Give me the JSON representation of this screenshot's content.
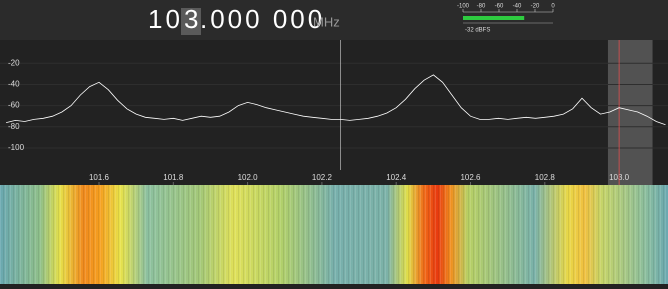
{
  "frequency": {
    "parts": [
      "10",
      "3",
      ".000 000"
    ],
    "unit": "MHz"
  },
  "meter": {
    "ticks": [
      -100,
      -80,
      -60,
      -40,
      -20,
      0
    ],
    "lim": [
      -100,
      0
    ],
    "value": -32,
    "value_label": "-32 dBFS",
    "color": "#2ecc40"
  },
  "chart_data": {
    "type": "line",
    "color": "#ffffff",
    "xlim": [
      101.3335,
      103.1316
    ],
    "ylim": [
      -135,
      2
    ],
    "xticks": [
      {
        "value": 101.6,
        "label": "101.6"
      },
      {
        "value": 101.8,
        "label": "101.8"
      },
      {
        "value": 102.0,
        "label": "102.0"
      },
      {
        "value": 102.2,
        "label": "102.2"
      },
      {
        "value": 102.4,
        "label": "102.4"
      },
      {
        "value": 102.6,
        "label": "102.6"
      },
      {
        "value": 102.8,
        "label": "102.8"
      },
      {
        "value": 103.0,
        "label": "103.0"
      }
    ],
    "yticks": [
      -20,
      -40,
      -60,
      -80,
      -100
    ],
    "center": 102.25,
    "marker": 103.0,
    "filter": [
      102.97,
      103.09
    ],
    "x": [
      101.35,
      101.375,
      101.4,
      101.425,
      101.45,
      101.475,
      101.5,
      101.525,
      101.55,
      101.575,
      101.6,
      101.625,
      101.65,
      101.675,
      101.7,
      101.725,
      101.75,
      101.775,
      101.8,
      101.825,
      101.85,
      101.875,
      101.9,
      101.925,
      101.95,
      101.975,
      102.0,
      102.025,
      102.05,
      102.075,
      102.1,
      102.125,
      102.15,
      102.175,
      102.2,
      102.225,
      102.25,
      102.275,
      102.3,
      102.325,
      102.35,
      102.375,
      102.4,
      102.425,
      102.45,
      102.475,
      102.5,
      102.525,
      102.55,
      102.575,
      102.6,
      102.625,
      102.65,
      102.675,
      102.7,
      102.725,
      102.75,
      102.775,
      102.8,
      102.825,
      102.85,
      102.875,
      102.9,
      102.925,
      102.95,
      102.975,
      103.0,
      103.025,
      103.05,
      103.075,
      103.1,
      103.125
    ],
    "values": [
      -76,
      -74,
      -75,
      -73,
      -72,
      -70,
      -66,
      -60,
      -50,
      -42,
      -38,
      -45,
      -55,
      -63,
      -68,
      -71,
      -72,
      -73,
      -72,
      -74,
      -72,
      -70,
      -71,
      -70,
      -66,
      -60,
      -57,
      -59,
      -62,
      -64,
      -66,
      -68,
      -70,
      -71,
      -72,
      -73,
      -73,
      -74,
      -73,
      -72,
      -70,
      -67,
      -62,
      -54,
      -44,
      -36,
      -31,
      -38,
      -50,
      -62,
      -70,
      -73,
      -73,
      -72,
      -73,
      -72,
      -71,
      -72,
      -71,
      -70,
      -68,
      -63,
      -53,
      -62,
      -68,
      -66,
      -62,
      -64,
      -66,
      -70,
      -75,
      -78
    ]
  }
}
